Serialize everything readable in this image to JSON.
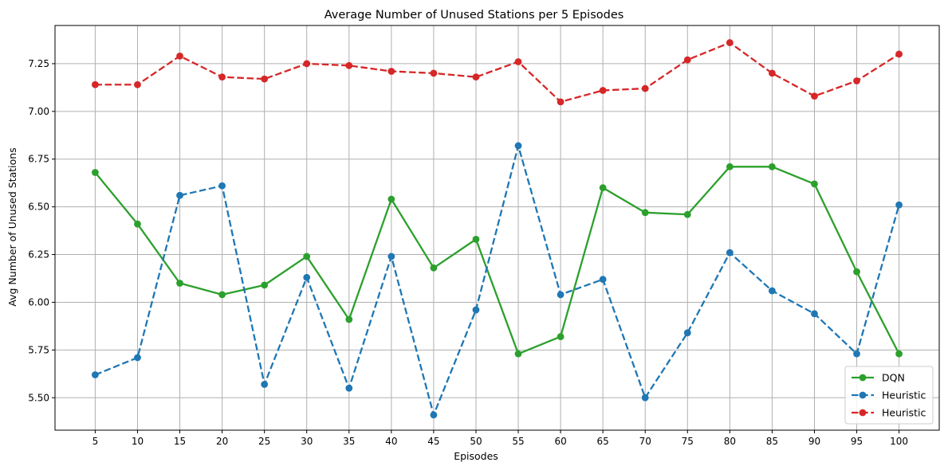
{
  "chart_data": {
    "type": "line",
    "title": "Average Number of Unused Stations per 5 Episodes",
    "xlabel": "Episodes",
    "ylabel": "Avg Number of Unused Stations",
    "x": [
      5,
      10,
      15,
      20,
      25,
      30,
      35,
      40,
      45,
      50,
      55,
      60,
      65,
      70,
      75,
      80,
      85,
      90,
      95,
      100
    ],
    "xticks": [
      "5",
      "10",
      "15",
      "20",
      "25",
      "30",
      "35",
      "40",
      "45",
      "50",
      "55",
      "60",
      "65",
      "70",
      "75",
      "80",
      "85",
      "90",
      "95",
      "100"
    ],
    "yticks": [
      "5.50",
      "5.75",
      "6.00",
      "6.25",
      "6.50",
      "6.75",
      "7.00",
      "7.25"
    ],
    "xlim": [
      0.25,
      104.75
    ],
    "ylim": [
      5.33,
      7.45
    ],
    "grid": true,
    "legend_position": "lower-right",
    "series": [
      {
        "name": "DQN",
        "color": "#2ca02c",
        "linestyle": "solid",
        "values": [
          6.68,
          6.41,
          6.1,
          6.04,
          6.09,
          6.24,
          5.91,
          6.54,
          6.18,
          6.33,
          5.73,
          5.82,
          6.6,
          6.47,
          6.46,
          6.71,
          6.71,
          6.62,
          6.16,
          5.73
        ]
      },
      {
        "name": "Heuristic",
        "color": "#1f77b4",
        "linestyle": "dashed",
        "values": [
          5.62,
          5.71,
          6.56,
          6.61,
          5.57,
          6.13,
          5.55,
          6.24,
          5.41,
          5.96,
          6.82,
          6.04,
          6.12,
          5.5,
          5.84,
          6.26,
          6.06,
          5.94,
          5.73,
          6.51
        ]
      },
      {
        "name": "Heuristic",
        "color": "#d62728",
        "linestyle": "dashed",
        "values": [
          7.14,
          7.14,
          7.29,
          7.18,
          7.17,
          7.25,
          7.24,
          7.21,
          7.2,
          7.18,
          7.26,
          7.05,
          7.11,
          7.12,
          7.27,
          7.36,
          7.2,
          7.08,
          7.16,
          7.3
        ]
      }
    ]
  }
}
